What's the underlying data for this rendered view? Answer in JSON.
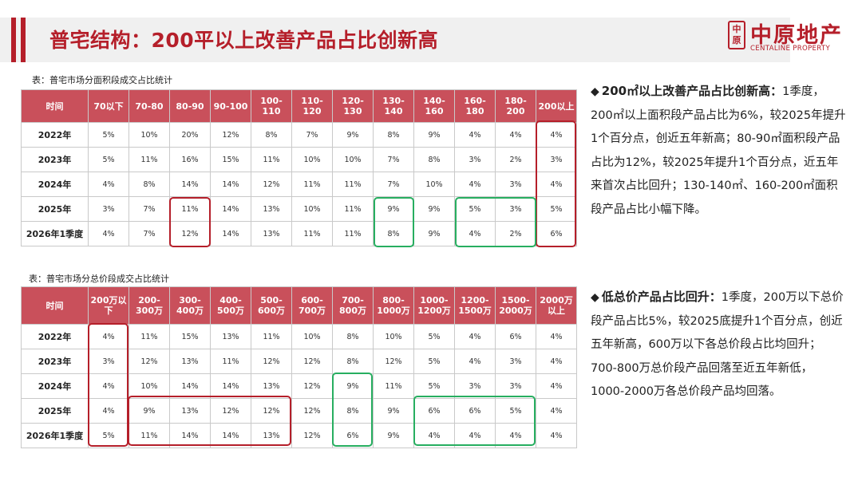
{
  "header": {
    "title": "普宅结构：200平以上改善产品占比创新高",
    "logo_mark": "中原",
    "logo_cn": "中原地产",
    "logo_en": "CENTALINE PROPERTY",
    "accent_color": "#b51f2a"
  },
  "area_table": {
    "caption": "表：普宅市场分面积段成交占比统计",
    "headers": [
      "时间",
      "70以下",
      "70-80",
      "80-90",
      "90-100",
      "100-110",
      "110-120",
      "120-130",
      "130-140",
      "140-160",
      "160-180",
      "180-200",
      "200以上"
    ],
    "rows": [
      [
        "2022年",
        "5%",
        "10%",
        "20%",
        "12%",
        "8%",
        "7%",
        "9%",
        "8%",
        "9%",
        "4%",
        "4%",
        "4%"
      ],
      [
        "2023年",
        "5%",
        "11%",
        "16%",
        "15%",
        "11%",
        "10%",
        "10%",
        "7%",
        "8%",
        "3%",
        "2%",
        "3%"
      ],
      [
        "2024年",
        "4%",
        "8%",
        "14%",
        "14%",
        "12%",
        "11%",
        "11%",
        "7%",
        "10%",
        "4%",
        "3%",
        "4%"
      ],
      [
        "2025年",
        "3%",
        "7%",
        "11%",
        "14%",
        "13%",
        "10%",
        "11%",
        "9%",
        "9%",
        "5%",
        "3%",
        "5%"
      ],
      [
        "2026年1季度",
        "4%",
        "7%",
        "12%",
        "14%",
        "13%",
        "11%",
        "11%",
        "8%",
        "9%",
        "4%",
        "2%",
        "6%"
      ]
    ]
  },
  "price_table": {
    "caption": "表：普宅市场分总价段成交占比统计",
    "headers": [
      "时间",
      "200万以下",
      "200-300万",
      "300-400万",
      "400-500万",
      "500-600万",
      "600-700万",
      "700-800万",
      "800-1000万",
      "1000-1200万",
      "1200-1500万",
      "1500-2000万",
      "2000万以上"
    ],
    "rows": [
      [
        "2022年",
        "4%",
        "11%",
        "15%",
        "13%",
        "11%",
        "10%",
        "8%",
        "10%",
        "5%",
        "4%",
        "6%",
        "4%"
      ],
      [
        "2023年",
        "3%",
        "12%",
        "13%",
        "11%",
        "12%",
        "12%",
        "8%",
        "12%",
        "5%",
        "4%",
        "3%",
        "4%"
      ],
      [
        "2024年",
        "4%",
        "10%",
        "14%",
        "14%",
        "13%",
        "12%",
        "9%",
        "11%",
        "5%",
        "3%",
        "3%",
        "4%"
      ],
      [
        "2025年",
        "4%",
        "9%",
        "13%",
        "12%",
        "12%",
        "12%",
        "8%",
        "9%",
        "6%",
        "6%",
        "5%",
        "4%"
      ],
      [
        "2026年1季度",
        "5%",
        "11%",
        "14%",
        "14%",
        "13%",
        "12%",
        "6%",
        "9%",
        "4%",
        "4%",
        "4%",
        "4%"
      ]
    ]
  },
  "notes": [
    {
      "bullet": "◆",
      "lead": "200㎡以上改善产品占比创新高：",
      "body": "1季度，200㎡以上面积段产品占比为6%，较2025年提升1个百分点，创近五年新高；80-90㎡面积段产品占比为12%，较2025年提升1个百分点，近五年来首次占比回升；130-140㎡、160-200㎡面积段产品占比小幅下降。"
    },
    {
      "bullet": "◆",
      "lead": "低总价产品占比回升：",
      "body": "1季度，200万以下总价段产品占比5%，较2025底提升1个百分点，创近五年新高，600万以下各总价段占比均回升；700-800万总价段产品回落至近五年新低，1000-2000万各总价段产品均回落。"
    }
  ],
  "highlight_colors": {
    "increase": "#b51f2a",
    "decrease": "#27ae60"
  }
}
